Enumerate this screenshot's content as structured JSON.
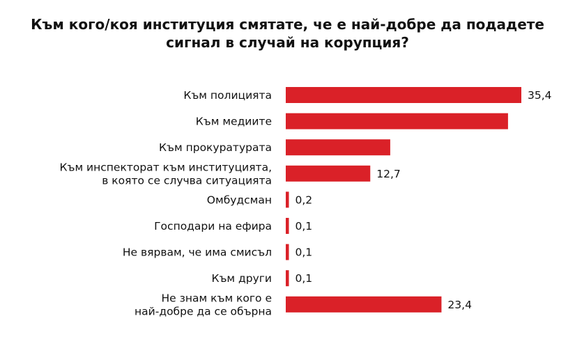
{
  "chart_data": {
    "type": "bar",
    "orientation": "horizontal",
    "title": "Към кого/коя институция смятате, че е най-добре да подадете сигнал в случай на корупция?",
    "title_lines": [
      "Към кого/коя институция смятате, че е най-добре да подадете",
      "сигнал в случай на корупция?"
    ],
    "categories": [
      [
        "Към полицията"
      ],
      [
        "Към медиите"
      ],
      [
        "Към прокуратурата"
      ],
      [
        "Към инспекторат към институцията,",
        "в която се случва ситуацията"
      ],
      [
        "Омбудсман"
      ],
      [
        "Господари на ефира"
      ],
      [
        "Не вярвам, че има смисъл"
      ],
      [
        "Към други"
      ],
      [
        "Не знам към кого е",
        "най-добре да се обърна"
      ]
    ],
    "values": [
      35.4,
      33.4,
      15.7,
      12.7,
      0.2,
      0.1,
      0.1,
      0.1,
      23.4
    ],
    "data_labels": [
      "35,4",
      "",
      "",
      "12,7",
      "0,2",
      "0,1",
      "0,1",
      "0,1",
      "23,4"
    ],
    "bar_color": "#da2128",
    "xlim": [
      0,
      35.4
    ],
    "grid": false,
    "legend": "none"
  }
}
